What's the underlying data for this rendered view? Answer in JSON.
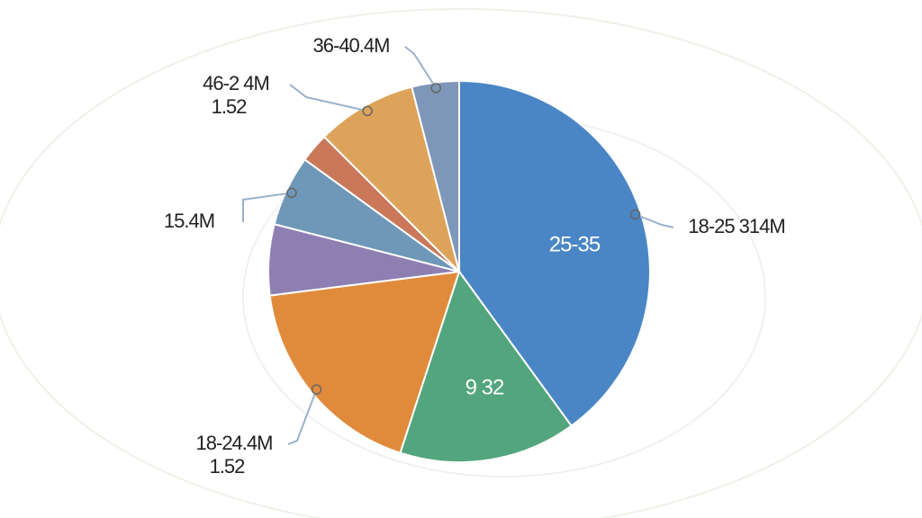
{
  "chart_data": {
    "type": "pie",
    "categories": [
      "18-25 314M",
      null,
      "18-24.4M",
      null,
      "15.4M",
      null,
      "46-2 4M",
      "36-40.4M"
    ],
    "sublabels": [
      null,
      null,
      "1.52",
      null,
      null,
      null,
      "1.52",
      null
    ],
    "inner_labels": [
      "25-35",
      "9 32",
      null,
      null,
      null,
      null,
      null,
      null
    ],
    "values": [
      40,
      15,
      18,
      6,
      6,
      2.5,
      8.5,
      4
    ],
    "colors": [
      "#4a86c5",
      "#52a57c",
      "#e08b3c",
      "#8e7fb3",
      "#6f98b8",
      "#c9785a",
      "#dda35a",
      "#7e96b8"
    ]
  }
}
